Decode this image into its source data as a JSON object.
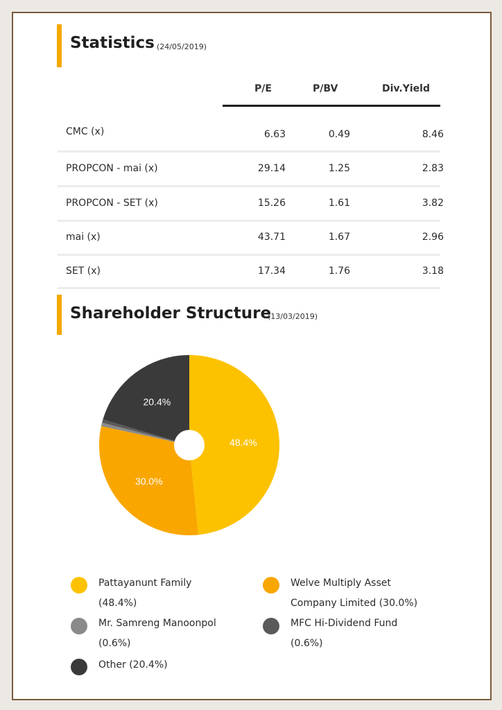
{
  "statistics": {
    "title": "Statistics",
    "date": "(24/05/2019)",
    "columns": [
      "P/E",
      "P/BV",
      "Div.Yield"
    ],
    "rows": [
      {
        "label": "CMC (x)",
        "pe": "6.63",
        "pbv": "0.49",
        "div": "8.46"
      },
      {
        "label": "PROPCON - mai (x)",
        "pe": "29.14",
        "pbv": "1.25",
        "div": "2.83"
      },
      {
        "label": "PROPCON - SET (x)",
        "pe": "15.26",
        "pbv": "1.61",
        "div": "3.82"
      },
      {
        "label": "mai (x)",
        "pe": "43.71",
        "pbv": "1.67",
        "div": "2.96"
      },
      {
        "label": "SET (x)",
        "pe": "17.34",
        "pbv": "1.76",
        "div": "3.18"
      }
    ]
  },
  "shareholder": {
    "title": "Shareholder Structure",
    "date": "(13/03/2019)",
    "legend": [
      {
        "line1": "Pattayanunt Family",
        "line2": "(48.4%)"
      },
      {
        "line1": "Welve Multiply Asset",
        "line2": "Company Limited (30.0%)"
      },
      {
        "line1": "Mr. Samreng Manoonpol",
        "line2": "(0.6%)"
      },
      {
        "line1": "MFC Hi-Dividend Fund",
        "line2": "(0.6%)"
      },
      {
        "line1": "Other (20.4%)",
        "line2": ""
      }
    ]
  },
  "chart_data": {
    "type": "pie",
    "categories": [
      "Pattayanunt Family",
      "Welve Multiply Asset Company Limited",
      "Mr. Samreng Manoonpol",
      "MFC Hi-Dividend Fund",
      "Other"
    ],
    "values": [
      48.4,
      30.0,
      0.6,
      0.6,
      20.4
    ],
    "labels": [
      "48.4%",
      "30.0%",
      "",
      "",
      "20.4%"
    ],
    "colors": [
      "#fcc200",
      "#f9a600",
      "#8a8a8a",
      "#5a5a5a",
      "#3a3a3a"
    ],
    "donut_hole": true,
    "legend_position": "bottom"
  }
}
